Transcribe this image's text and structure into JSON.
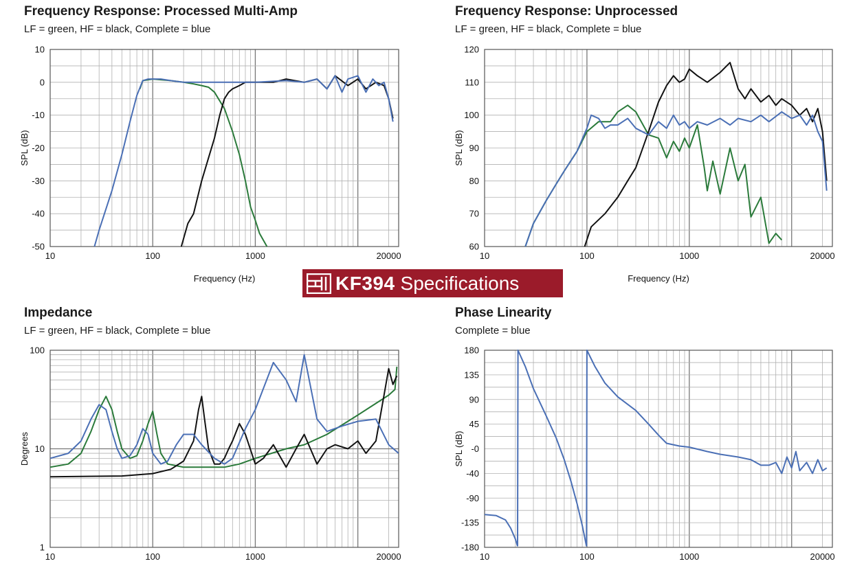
{
  "brand": {
    "model": "KF394",
    "label": "Specifications",
    "logo_icon": "eaw-logo-icon",
    "background": "#9b1b2a"
  },
  "colors": {
    "lf": "#2a7a3a",
    "hf": "#111111",
    "complete": "#4a6fb5",
    "grid": "#b0b0b0"
  },
  "chart_data": [
    {
      "type": "line",
      "title": "Frequency Response: Processed Multi-Amp",
      "subtitle": "LF = green, HF = black, Complete = blue",
      "xlabel": "Frequency (Hz)",
      "ylabel": "SPL (dB)",
      "xscale": "log",
      "xlim": [
        10,
        25000
      ],
      "ylim": [
        -50,
        10
      ],
      "xticks": [
        10,
        100,
        1000,
        20000
      ],
      "xticklabels": [
        "10",
        "100",
        "1000",
        "20000"
      ],
      "yticks": [
        10,
        0,
        -10,
        -20,
        -30,
        -40,
        -50
      ],
      "yticklabels": [
        "10",
        "0",
        "-10",
        "-20",
        "-30",
        "-40",
        "-50"
      ],
      "grid": true,
      "series": [
        {
          "key": "lf",
          "x": [
            75,
            80,
            100,
            150,
            200,
            250,
            300,
            350,
            400,
            500,
            600,
            700,
            800,
            900,
            1000,
            1100,
            1300
          ],
          "y": [
            -2,
            0.5,
            1,
            0.5,
            0,
            -0.5,
            -1,
            -1.5,
            -3,
            -8,
            -15,
            -22,
            -30,
            -38,
            -42,
            -46,
            -50
          ]
        },
        {
          "key": "hf",
          "x": [
            190,
            220,
            250,
            300,
            350,
            400,
            450,
            500,
            550,
            600,
            700,
            800,
            1000,
            1500,
            2000,
            3000,
            4000,
            5000,
            6000,
            8000,
            10000,
            12000,
            15000,
            18000,
            20000,
            22000
          ],
          "y": [
            -50,
            -43,
            -40,
            -30,
            -23,
            -17,
            -10,
            -5,
            -3,
            -2,
            -1,
            0,
            0,
            0,
            1,
            0,
            1,
            -2,
            2,
            -1,
            1,
            -2,
            0,
            -1,
            -5,
            -11
          ]
        },
        {
          "key": "complete",
          "x": [
            27,
            30,
            40,
            50,
            60,
            70,
            80,
            90,
            100,
            120,
            150,
            200,
            300,
            500,
            1000,
            2000,
            3000,
            4000,
            5000,
            6000,
            7000,
            8000,
            10000,
            12000,
            14000,
            16000,
            18000,
            20000,
            22000
          ],
          "y": [
            -50,
            -45,
            -33,
            -22,
            -12,
            -4,
            0.5,
            1,
            1,
            1,
            0.5,
            0,
            0,
            0,
            0,
            0.5,
            0,
            1,
            -2,
            2,
            -3,
            1,
            2,
            -3,
            1,
            -1,
            0,
            -5,
            -12
          ]
        }
      ]
    },
    {
      "type": "line",
      "title": "Frequency Response: Unprocessed",
      "subtitle": "LF = green, HF = black, Complete = blue",
      "xlabel": "Frequency (Hz)",
      "ylabel": "SPL (dB)",
      "xscale": "log",
      "xlim": [
        10,
        25000
      ],
      "ylim": [
        60,
        120
      ],
      "xticks": [
        10,
        100,
        1000,
        20000
      ],
      "xticklabels": [
        "10",
        "100",
        "1000",
        "20000"
      ],
      "yticks": [
        120,
        110,
        100,
        90,
        80,
        70,
        60
      ],
      "yticklabels": [
        "120",
        "110",
        "100",
        "90",
        "80",
        "70",
        "60"
      ],
      "grid": true,
      "series": [
        {
          "key": "lf",
          "x": [
            25,
            30,
            40,
            50,
            60,
            80,
            100,
            130,
            170,
            200,
            250,
            300,
            400,
            500,
            600,
            700,
            800,
            900,
            1000,
            1200,
            1400,
            1500,
            1700,
            2000,
            2500,
            3000,
            3500,
            4000,
            5000,
            6000,
            7000,
            8000
          ],
          "y": [
            60,
            67,
            74,
            79,
            83,
            89,
            95,
            98,
            98,
            101,
            103,
            101,
            94,
            93,
            87,
            92,
            89,
            93,
            90,
            97,
            84,
            77,
            86,
            76,
            90,
            80,
            85,
            69,
            75,
            61,
            64,
            62
          ]
        },
        {
          "key": "hf",
          "x": [
            95,
            110,
            150,
            200,
            250,
            300,
            400,
            500,
            600,
            700,
            800,
            900,
            1000,
            1200,
            1500,
            2000,
            2500,
            3000,
            3500,
            4000,
            5000,
            6000,
            7000,
            8000,
            10000,
            12000,
            14000,
            16000,
            18000,
            20000,
            22000
          ],
          "y": [
            60,
            66,
            70,
            75,
            80,
            84,
            95,
            104,
            109,
            112,
            110,
            111,
            114,
            112,
            110,
            113,
            116,
            108,
            105,
            108,
            104,
            106,
            103,
            105,
            103,
            100,
            102,
            98,
            102,
            95,
            80
          ]
        },
        {
          "key": "complete",
          "x": [
            25,
            30,
            40,
            50,
            60,
            80,
            100,
            110,
            130,
            150,
            170,
            200,
            250,
            300,
            400,
            500,
            600,
            700,
            800,
            900,
            1000,
            1200,
            1500,
            2000,
            2500,
            3000,
            4000,
            5000,
            6000,
            8000,
            10000,
            12000,
            14000,
            16000,
            18000,
            20000,
            22000
          ],
          "y": [
            60,
            67,
            74,
            79,
            83,
            89,
            96,
            100,
            99,
            96,
            97,
            97,
            99,
            96,
            94,
            98,
            96,
            100,
            97,
            98,
            96,
            98,
            97,
            99,
            97,
            99,
            98,
            100,
            98,
            101,
            99,
            100,
            97,
            100,
            95,
            92,
            77
          ]
        }
      ]
    },
    {
      "type": "line",
      "title": "Impedance",
      "subtitle": "LF = green, HF = black, Complete = blue",
      "xlabel": "",
      "ylabel": "Degrees",
      "xscale": "log",
      "yscale": "log",
      "xlim": [
        10,
        25000
      ],
      "ylim": [
        1,
        100
      ],
      "xticks": [
        10,
        100,
        1000,
        20000
      ],
      "xticklabels": [
        "10",
        "100",
        "1000",
        "20000"
      ],
      "yticks": [
        100,
        10,
        1
      ],
      "yticklabels": [
        "100",
        "10",
        "1"
      ],
      "grid": true,
      "series": [
        {
          "key": "lf",
          "x": [
            10,
            15,
            20,
            25,
            30,
            35,
            40,
            45,
            50,
            60,
            70,
            80,
            90,
            100,
            110,
            120,
            140,
            200,
            300,
            500,
            700,
            1000,
            2000,
            3000,
            5000,
            10000,
            20000,
            23000,
            24000
          ],
          "y": [
            6.5,
            7,
            9,
            15,
            25,
            34,
            25,
            15,
            10,
            8,
            8.5,
            12,
            18,
            24,
            14,
            9,
            7,
            6.5,
            6.5,
            6.5,
            7,
            8,
            10,
            11,
            14,
            22,
            35,
            40,
            68
          ]
        },
        {
          "key": "hf",
          "x": [
            10,
            50,
            100,
            150,
            200,
            250,
            280,
            300,
            320,
            350,
            400,
            450,
            500,
            550,
            600,
            700,
            800,
            1000,
            1200,
            1500,
            2000,
            2500,
            3000,
            4000,
            5000,
            6000,
            8000,
            10000,
            12000,
            15000,
            18000,
            20000,
            22000,
            24000
          ],
          "y": [
            5.2,
            5.3,
            5.6,
            6.2,
            7.5,
            12,
            25,
            34,
            20,
            10,
            7,
            7,
            8,
            10,
            12,
            18,
            14,
            7,
            8,
            11,
            6.5,
            10,
            14,
            7,
            10,
            11,
            10,
            12,
            9,
            12,
            35,
            65,
            45,
            55
          ]
        },
        {
          "key": "complete",
          "x": [
            10,
            15,
            20,
            25,
            30,
            35,
            40,
            45,
            50,
            60,
            70,
            80,
            90,
            100,
            120,
            140,
            170,
            200,
            250,
            300,
            400,
            500,
            600,
            800,
            1000,
            1500,
            2000,
            2500,
            3000,
            3500,
            4000,
            5000,
            7000,
            10000,
            15000,
            20000,
            25000
          ],
          "y": [
            8,
            9,
            12,
            20,
            28,
            25,
            15,
            10,
            8,
            8.5,
            11,
            16,
            14,
            9,
            7,
            7.5,
            11,
            14,
            14,
            11,
            8,
            7,
            8,
            16,
            25,
            75,
            50,
            30,
            90,
            40,
            20,
            15,
            17,
            19,
            20,
            11,
            9
          ]
        }
      ]
    },
    {
      "type": "line",
      "title": "Phase Linearity",
      "subtitle": "Complete = blue",
      "xlabel": "",
      "ylabel": "SPL (dB)",
      "xscale": "log",
      "xlim": [
        10,
        25000
      ],
      "ylim": [
        -180,
        180
      ],
      "xticks": [
        10,
        100,
        1000,
        20000
      ],
      "xticklabels": [
        "10",
        "100",
        "1000",
        "20000"
      ],
      "yticks": [
        180,
        135,
        90,
        45,
        0,
        -40,
        -90,
        -135,
        -180
      ],
      "yticklabels": [
        "180",
        "135",
        "90",
        "45",
        "-0",
        "-40",
        "-90",
        "-135",
        "-180"
      ],
      "grid": true,
      "series": [
        {
          "key": "complete",
          "x": [
            10,
            13,
            16,
            18,
            20,
            21
          ],
          "y": [
            -120,
            -122,
            -130,
            -145,
            -165,
            -178
          ]
        },
        {
          "key": "complete",
          "x": [
            21,
            21.2,
            25,
            30,
            40,
            50,
            60,
            70,
            80,
            90,
            99
          ],
          "y": [
            -178,
            180,
            150,
            110,
            60,
            20,
            -20,
            -60,
            -100,
            -140,
            -178
          ]
        },
        {
          "key": "complete",
          "x": [
            99,
            100,
            120,
            150,
            200,
            300,
            400,
            500,
            600,
            800,
            1000,
            1500,
            2000,
            3000,
            4000,
            5000,
            6000,
            7000,
            8000,
            9000,
            10000,
            11000,
            12000,
            14000,
            16000,
            18000,
            20000,
            22000
          ],
          "y": [
            -178,
            180,
            150,
            120,
            95,
            70,
            45,
            25,
            10,
            5,
            3,
            -5,
            -10,
            -15,
            -20,
            -30,
            -30,
            -25,
            -45,
            -15,
            -35,
            -5,
            -40,
            -25,
            -45,
            -20,
            -40,
            -35
          ]
        }
      ]
    }
  ]
}
